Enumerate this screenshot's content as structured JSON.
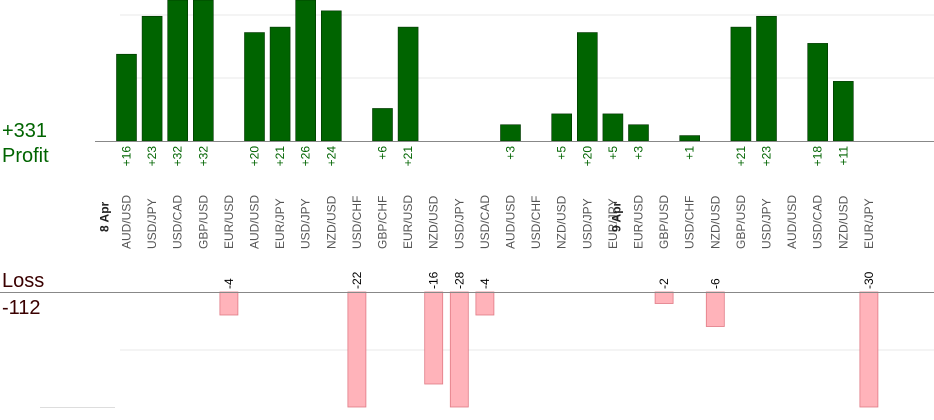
{
  "chart_data": {
    "type": "bar",
    "summary": {
      "profit_total": "+331",
      "profit_label": "Profit",
      "loss_label": "Loss",
      "loss_total": "-112"
    },
    "date_labels": [
      {
        "label": "8 Apr",
        "before_index": 0
      },
      {
        "label": "9 Apr",
        "before_index": 20
      }
    ],
    "categories": [
      "AUD/USD",
      "USD/JPY",
      "USD/CAD",
      "GBP/USD",
      "EUR/USD",
      "AUD/USD",
      "EUR/JPY",
      "USD/JPY",
      "NZD/USD",
      "USD/CHF",
      "GBP/CHF",
      "EUR/USD",
      "NZD/USD",
      "USD/JPY",
      "USD/CAD",
      "AUD/USD",
      "USD/CHF",
      "NZD/USD",
      "USD/JPY",
      "EUR/JPY",
      "EUR/USD",
      "GBP/USD",
      "USD/CHF",
      "NZD/USD",
      "GBP/USD",
      "USD/JPY",
      "AUD/USD",
      "USD/CAD",
      "NZD/USD",
      "EUR/JPY"
    ],
    "series": [
      {
        "name": "Profit",
        "color": "#006400",
        "values": [
          16,
          23,
          32,
          32,
          null,
          20,
          21,
          26,
          24,
          null,
          6,
          21,
          null,
          null,
          null,
          3,
          null,
          5,
          20,
          5,
          3,
          null,
          1,
          null,
          21,
          23,
          null,
          18,
          11,
          null
        ],
        "labels": [
          "+16",
          "+23",
          "+32",
          "+32",
          "",
          "+20",
          "+21",
          "+26",
          "+24",
          "",
          "+6",
          "+21",
          "",
          "",
          "",
          "+3",
          "",
          "+5",
          "+20",
          "+5",
          "+3",
          "",
          "+1",
          "",
          "+21",
          "+23",
          "",
          "+18",
          "+11",
          ""
        ]
      },
      {
        "name": "Loss",
        "color": "#ffb3ba",
        "values": [
          null,
          null,
          null,
          null,
          -4,
          null,
          null,
          null,
          null,
          -22,
          null,
          null,
          -16,
          -28,
          -4,
          null,
          null,
          null,
          null,
          null,
          null,
          -2,
          null,
          -6,
          null,
          null,
          null,
          null,
          null,
          -30
        ],
        "labels": [
          "",
          "",
          "",
          "",
          "-4",
          "",
          "",
          "",
          "",
          "-22",
          "",
          "",
          "-16",
          "-28",
          "-4",
          "",
          "",
          "",
          "",
          "",
          "",
          "-2",
          "",
          "-6",
          "",
          "",
          "",
          "",
          "",
          "-30"
        ]
      }
    ],
    "ylim_profit": [
      0,
      26
    ],
    "ylim_loss": [
      -20,
      0
    ],
    "grid": true,
    "colors": {
      "profit_bar": "#006400",
      "profit_text": "#006400",
      "loss_bar": "#ffb3ba",
      "loss_border": "#e07a85",
      "loss_text": "#000000",
      "axis": "#888888",
      "grid": "#e8e8e8",
      "category_text": "#555555",
      "loss_label_text": "#3a0000"
    }
  }
}
